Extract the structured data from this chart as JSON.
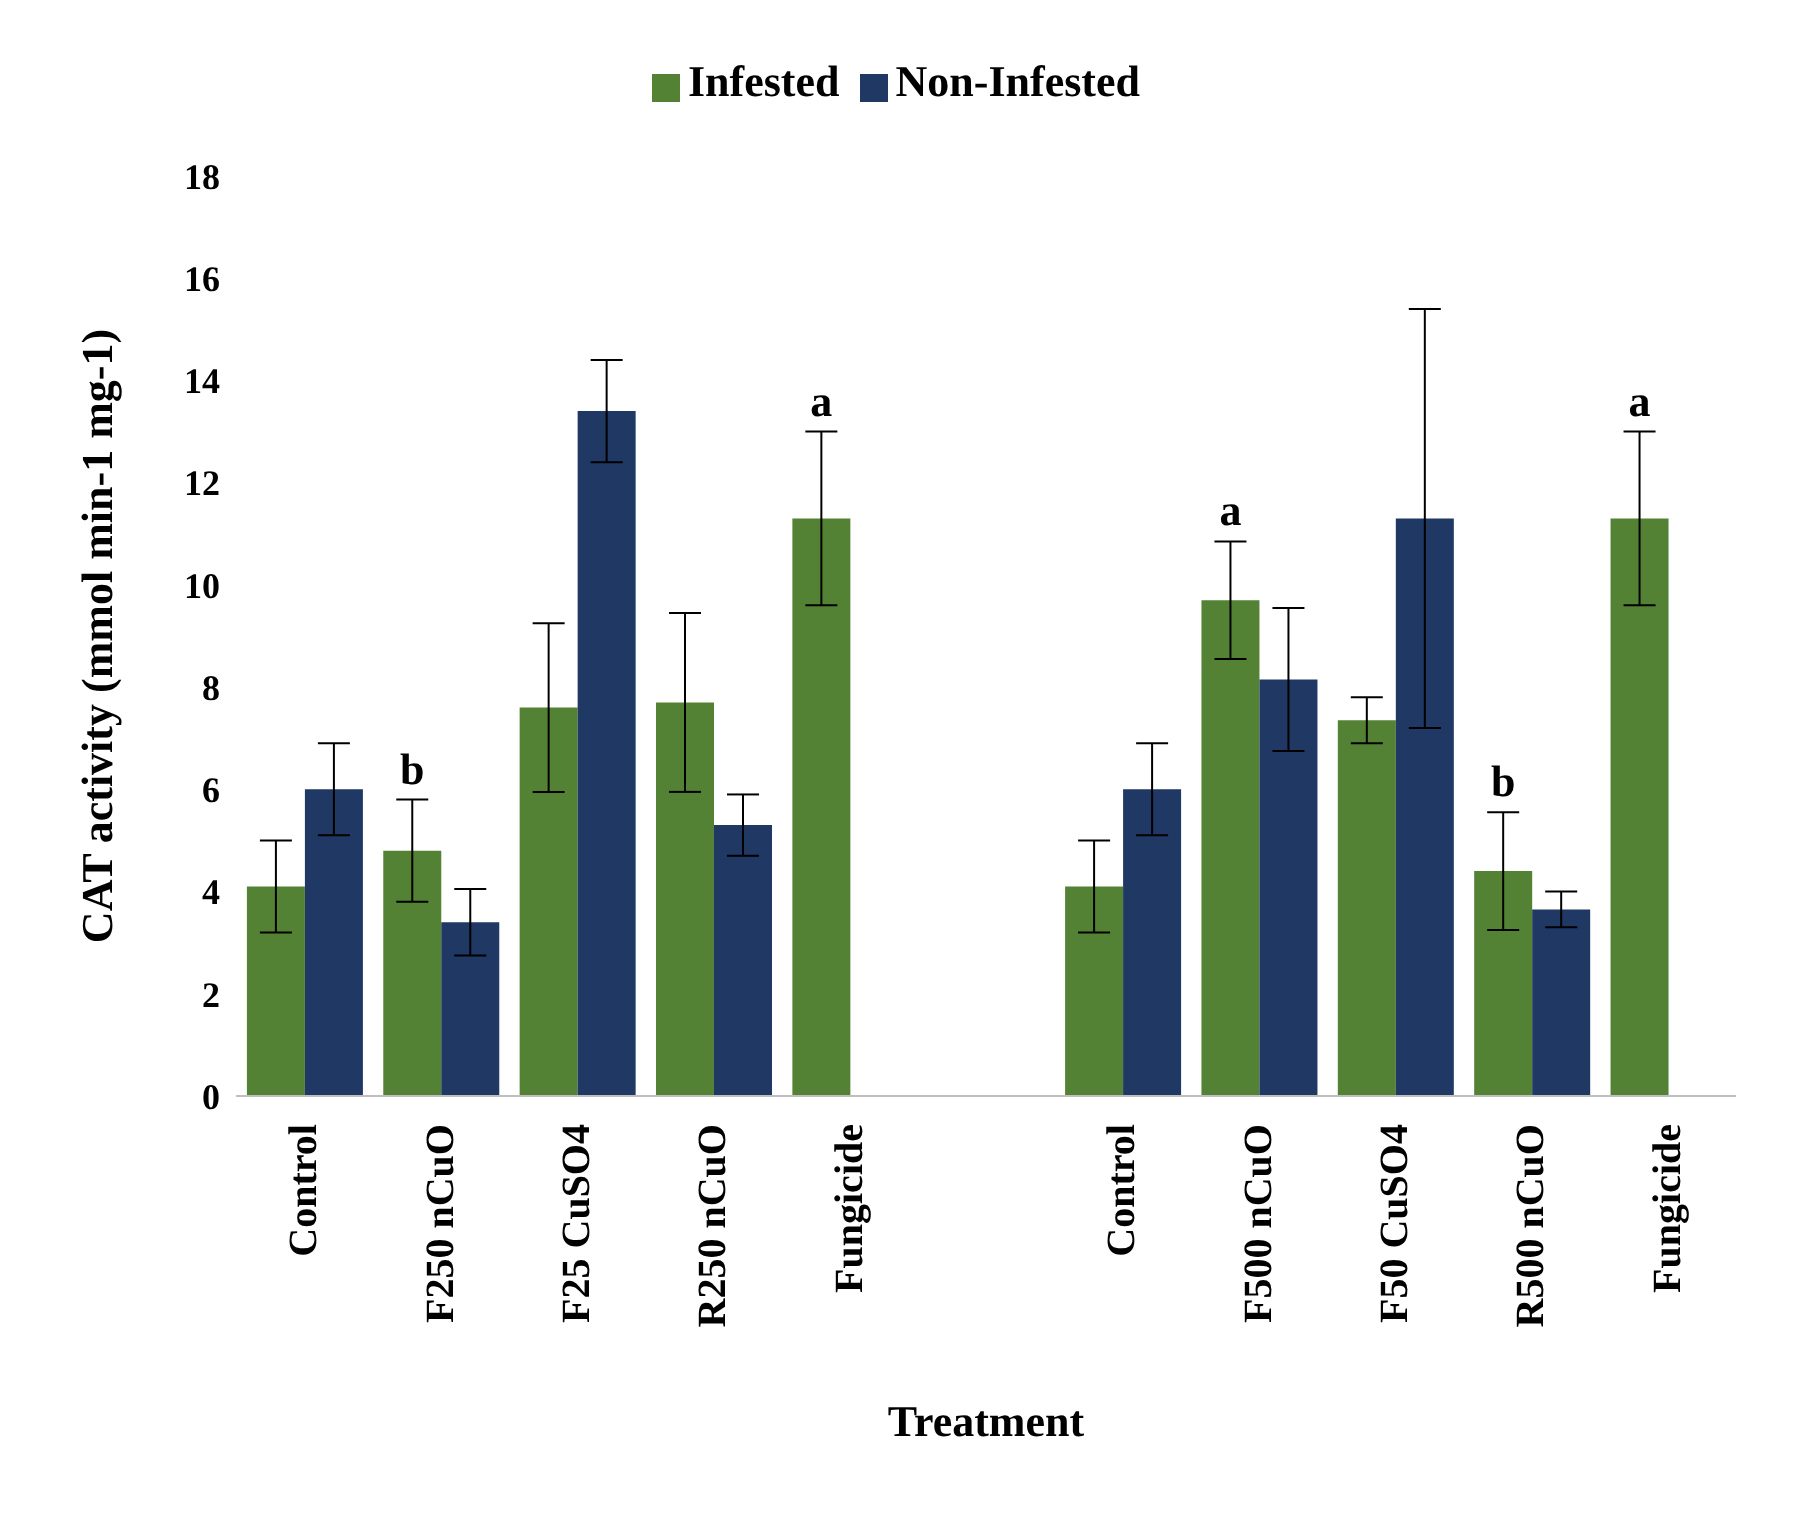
{
  "chart_data": {
    "type": "bar",
    "xlabel": "Treatment",
    "ylabel": "CAT activity (mmol min-1 mg-1)",
    "categories": [
      "Control",
      "F250 nCuO",
      "F25 CuSO4",
      "R250 nCuO",
      "Fungicide",
      null,
      "Control",
      "F500 nCuO",
      "F50 CuSO4",
      "R500 nCuO",
      "Fungicide"
    ],
    "series": [
      {
        "name": "Infested",
        "color": "#548235",
        "values": [
          4.1,
          4.8,
          7.6,
          7.7,
          11.3,
          null,
          4.1,
          9.7,
          7.35,
          4.4,
          11.3
        ],
        "errors": [
          0.9,
          1.0,
          1.65,
          1.75,
          1.7,
          null,
          0.9,
          1.15,
          0.45,
          1.15,
          1.7
        ],
        "value_labels": [
          null,
          "b",
          null,
          null,
          "a",
          null,
          null,
          "a",
          null,
          "b",
          "a"
        ]
      },
      {
        "name": "Non-Infested",
        "color": "#1f3864",
        "values": [
          6.0,
          3.4,
          13.4,
          5.3,
          null,
          null,
          6.0,
          8.15,
          11.3,
          3.65,
          null
        ],
        "errors": [
          0.9,
          0.65,
          1.0,
          0.6,
          null,
          null,
          0.9,
          1.4,
          4.1,
          0.35,
          null
        ]
      }
    ],
    "ylim": [
      0,
      18
    ],
    "yticks": [
      0,
      2,
      4,
      6,
      8,
      10,
      12,
      14,
      16,
      18
    ],
    "grid": false,
    "legend": "top"
  }
}
